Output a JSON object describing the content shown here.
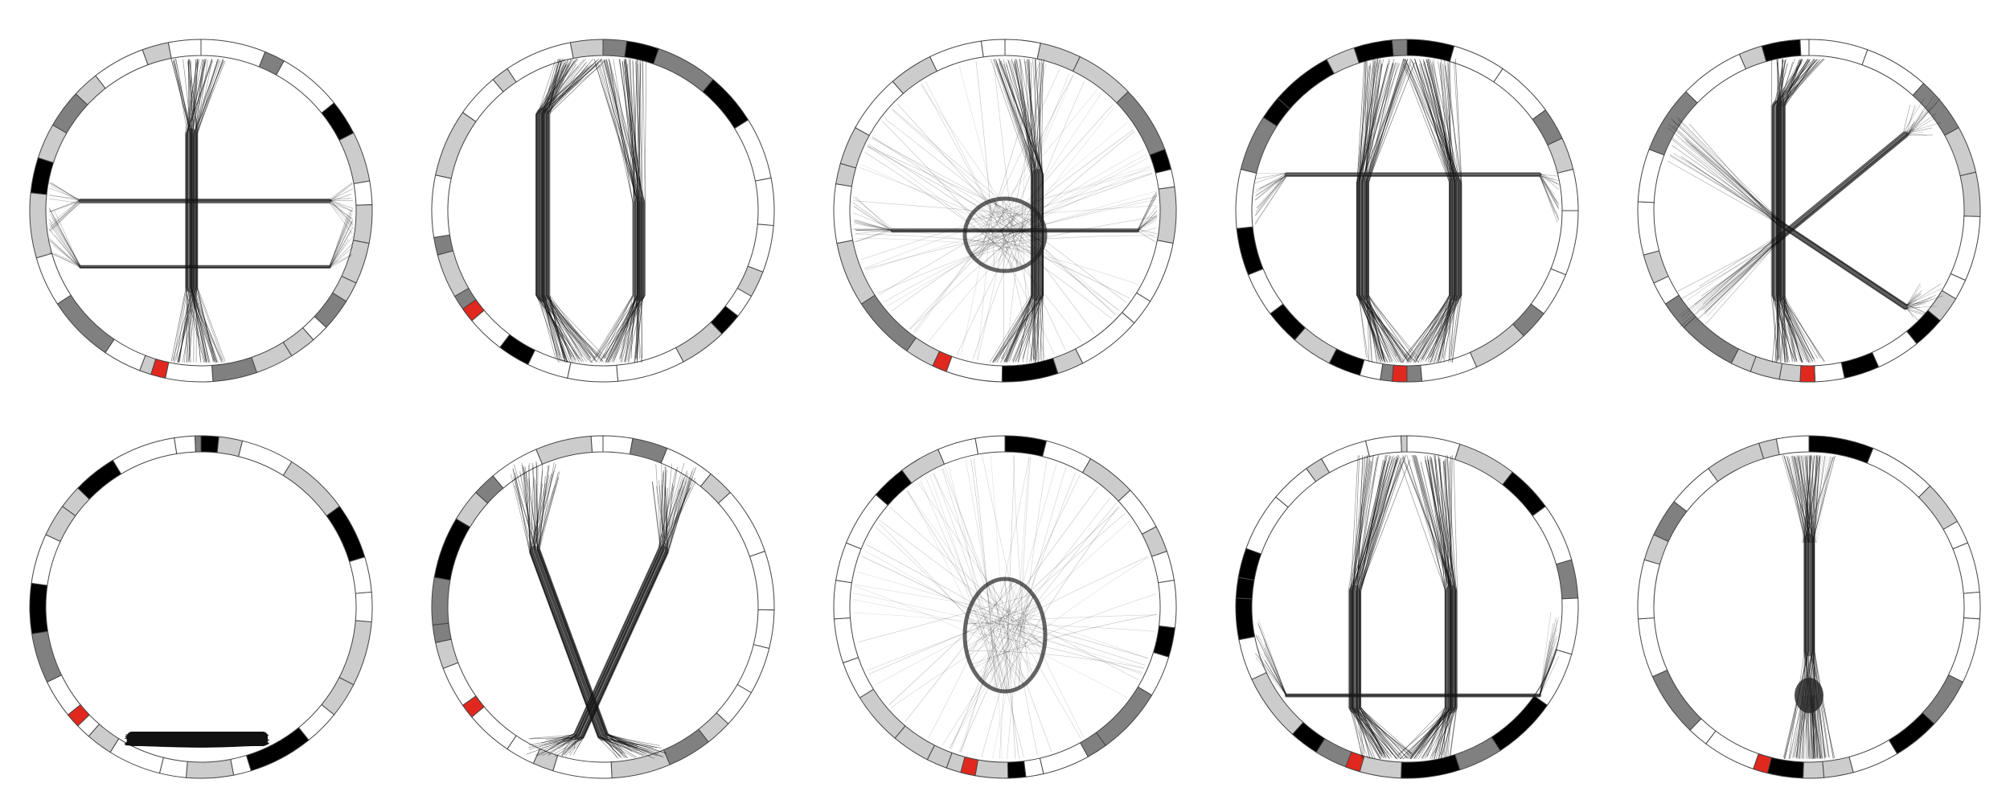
{
  "figure": {
    "segment_colors": {
      "white": "#ffffff",
      "light": "#cccccc",
      "mid": "#808080",
      "dark": "#000000",
      "highlight": "#e0281e"
    },
    "panels": [
      {
        "glyph": "t"
      },
      {
        "glyph": "h"
      },
      {
        "glyph": "a"
      },
      {
        "glyph": "n"
      },
      {
        "glyph": "k"
      },
      {
        "glyph": "_"
      },
      {
        "glyph": "y"
      },
      {
        "glyph": "o"
      },
      {
        "glyph": "u"
      },
      {
        "glyph": "!"
      }
    ]
  }
}
